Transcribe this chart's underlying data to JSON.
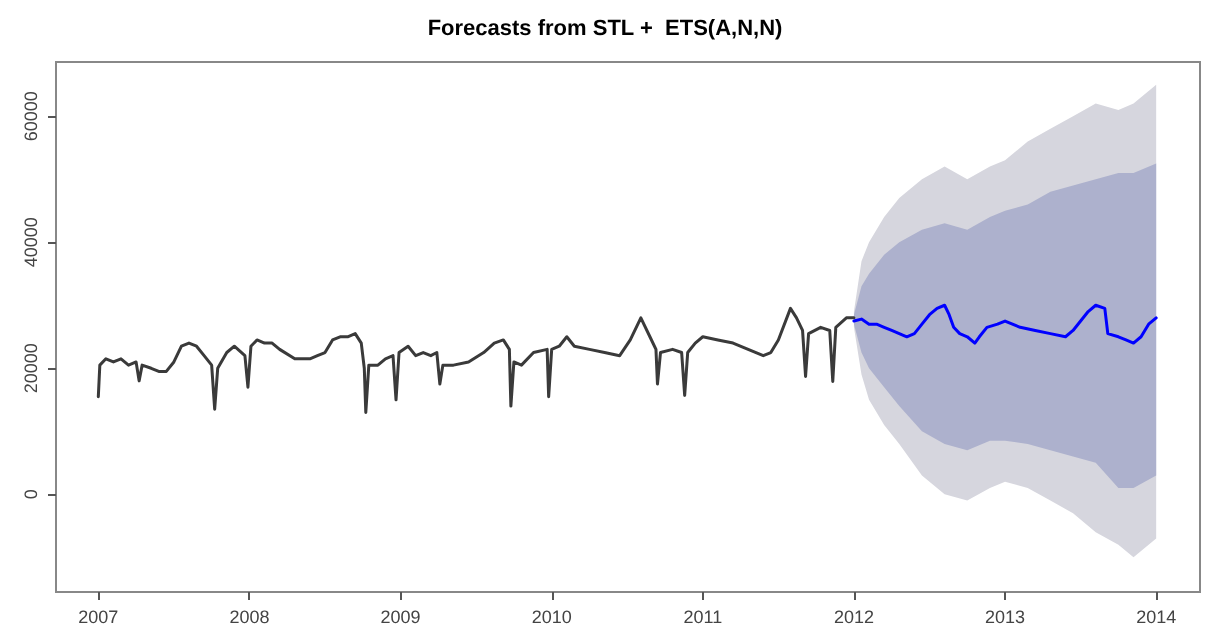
{
  "chart_data": {
    "type": "line",
    "title": "Forecasts from STL +  ETS(A,N,N)",
    "xlim": [
      2006.72,
      2014.29
    ],
    "xticks": [
      2007,
      2008,
      2009,
      2010,
      2011,
      2012,
      2013,
      2014
    ],
    "ylim": [
      -15500,
      68600
    ],
    "yticks": [
      0,
      20000,
      40000,
      60000
    ],
    "grid": false,
    "marker": "none",
    "line_style": "solid",
    "series": [
      {
        "color": "#d6d6de",
        "x": [
          2012.0,
          2012.05,
          2012.1,
          2012.2,
          2012.3,
          2012.45,
          2012.6,
          2012.75,
          2012.9,
          2013.0,
          2013.15,
          2013.3,
          2013.45,
          2013.6,
          2013.75,
          2013.85,
          2014.0
        ],
        "values": [
          null,
          null,
          null,
          null,
          null,
          null,
          null,
          null,
          null,
          null,
          null,
          null,
          null,
          null,
          null,
          null,
          null
        ],
        "upper": [
          29000,
          37000,
          40000,
          44000,
          47000,
          50000,
          52000,
          50000,
          52000,
          53000,
          56000,
          58000,
          60000,
          62000,
          61000,
          62000,
          65000
        ],
        "lower": [
          26500,
          19000,
          15000,
          11000,
          8000,
          3000,
          0,
          -1000,
          1000,
          2000,
          1000,
          -1000,
          -3000,
          -6000,
          -8000,
          -10000,
          -7000
        ]
      },
      {
        "color": "#adb1cd",
        "x": [
          2012.0,
          2012.05,
          2012.1,
          2012.2,
          2012.3,
          2012.45,
          2012.6,
          2012.75,
          2012.9,
          2013.0,
          2013.15,
          2013.3,
          2013.45,
          2013.6,
          2013.75,
          2013.85,
          2014.0
        ],
        "values": [
          null,
          null,
          null,
          null,
          null,
          null,
          null,
          null,
          null,
          null,
          null,
          null,
          null,
          null,
          null,
          null,
          null
        ],
        "upper": [
          28500,
          33000,
          35000,
          38000,
          40000,
          42000,
          43000,
          42000,
          44000,
          45000,
          46000,
          48000,
          49000,
          50000,
          51000,
          51000,
          52500
        ],
        "lower": [
          27000,
          22500,
          20000,
          17000,
          14000,
          10000,
          8000,
          7000,
          8500,
          8500,
          8000,
          7000,
          6000,
          5000,
          1000,
          1000,
          3000
        ]
      },
      {
        "color": "#3a3a3a",
        "x": [
          2007.0,
          2007.01,
          2007.05,
          2007.1,
          2007.15,
          2007.2,
          2007.25,
          2007.27,
          2007.29,
          2007.35,
          2007.4,
          2007.45,
          2007.5,
          2007.55,
          2007.6,
          2007.65,
          2007.7,
          2007.75,
          2007.77,
          2007.79,
          2007.85,
          2007.9,
          2007.97,
          2007.99,
          2008.01,
          2008.05,
          2008.1,
          2008.15,
          2008.2,
          2008.3,
          2008.4,
          2008.45,
          2008.5,
          2008.55,
          2008.6,
          2008.65,
          2008.7,
          2008.74,
          2008.76,
          2008.77,
          2008.79,
          2008.85,
          2008.9,
          2008.95,
          2008.97,
          2008.99,
          2009.05,
          2009.1,
          2009.15,
          2009.2,
          2009.24,
          2009.26,
          2009.28,
          2009.35,
          2009.45,
          2009.55,
          2009.62,
          2009.68,
          2009.72,
          2009.73,
          2009.75,
          2009.8,
          2009.88,
          2009.97,
          2009.98,
          2010.0,
          2010.05,
          2010.1,
          2010.15,
          2010.25,
          2010.35,
          2010.45,
          2010.52,
          2010.59,
          2010.65,
          2010.69,
          2010.7,
          2010.72,
          2010.8,
          2010.86,
          2010.88,
          2010.9,
          2010.95,
          2011.0,
          2011.1,
          2011.2,
          2011.3,
          2011.4,
          2011.45,
          2011.5,
          2011.58,
          2011.62,
          2011.66,
          2011.68,
          2011.7,
          2011.78,
          2011.84,
          2011.86,
          2011.88,
          2011.95,
          2012.0
        ],
        "values": [
          15500,
          20500,
          21500,
          21000,
          21500,
          20500,
          21000,
          18000,
          20500,
          20000,
          19500,
          19500,
          21000,
          23500,
          24000,
          23500,
          22000,
          20500,
          13500,
          20000,
          22500,
          23500,
          22000,
          17000,
          23500,
          24500,
          24000,
          24000,
          23000,
          21500,
          21500,
          22000,
          22500,
          24500,
          25000,
          25000,
          25500,
          24000,
          20000,
          13000,
          20500,
          20500,
          21500,
          22000,
          15000,
          22500,
          23500,
          22000,
          22500,
          22000,
          22500,
          17500,
          20500,
          20500,
          21000,
          22500,
          24000,
          24500,
          23000,
          14000,
          21000,
          20500,
          22500,
          23000,
          15500,
          23000,
          23500,
          25000,
          23500,
          23000,
          22500,
          22000,
          24500,
          28000,
          25000,
          23000,
          17500,
          22500,
          23000,
          22500,
          15700,
          22500,
          24000,
          25000,
          24500,
          24000,
          23000,
          22000,
          22500,
          24500,
          29500,
          28000,
          26000,
          18700,
          25500,
          26500,
          26000,
          17900,
          26500,
          28000,
          28000
        ]
      },
      {
        "color": "#0000ff",
        "x": [
          2012.0,
          2012.05,
          2012.1,
          2012.15,
          2012.2,
          2012.25,
          2012.3,
          2012.35,
          2012.4,
          2012.45,
          2012.5,
          2012.55,
          2012.6,
          2012.63,
          2012.66,
          2012.7,
          2012.75,
          2012.8,
          2012.83,
          2012.88,
          2012.95,
          2013.0,
          2013.1,
          2013.2,
          2013.3,
          2013.4,
          2013.45,
          2013.5,
          2013.55,
          2013.6,
          2013.66,
          2013.68,
          2013.75,
          2013.8,
          2013.85,
          2013.9,
          2013.95,
          2014.0
        ],
        "values": [
          27500,
          27800,
          27000,
          27000,
          26500,
          26000,
          25500,
          25000,
          25500,
          27000,
          28500,
          29500,
          30000,
          28500,
          26500,
          25500,
          25000,
          24000,
          25000,
          26500,
          27000,
          27500,
          26500,
          26000,
          25500,
          25000,
          26000,
          27500,
          29000,
          30000,
          29500,
          25500,
          25000,
          24500,
          24000,
          25000,
          27000,
          28000
        ]
      }
    ]
  }
}
